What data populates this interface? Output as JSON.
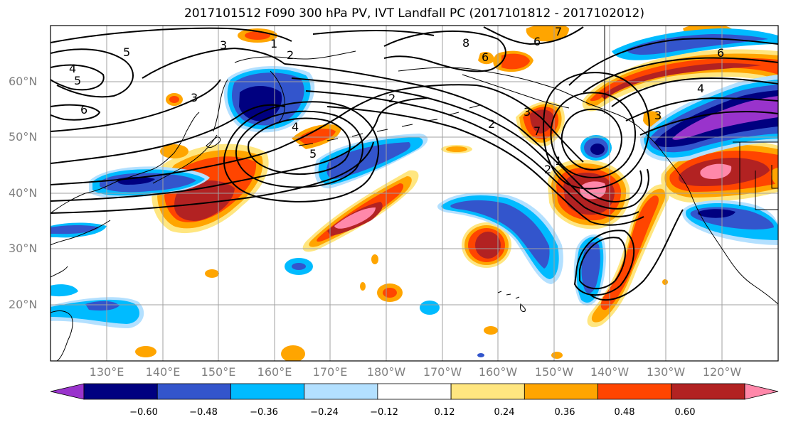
{
  "title": "2017101512 F090 300 hPa PV, IVT Landfall PC (2017101812 - 2017102012)",
  "lat_labels": [
    "60°N",
    "50°N",
    "40°N",
    "30°N",
    "20°N"
  ],
  "lon_labels": [
    "130°E",
    "140°E",
    "150°E",
    "160°E",
    "170°E",
    "180°W",
    "170°W",
    "160°W",
    "150°W",
    "140°W",
    "130°W",
    "120°W"
  ],
  "colorbar": {
    "ticks": [
      "−0.60",
      "−0.48",
      "−0.36",
      "−0.24",
      "−0.12",
      "0.12",
      "0.24",
      "0.36",
      "0.48",
      "0.60"
    ],
    "colors": [
      "#9933cc",
      "#000080",
      "#3355cc",
      "#00bbff",
      "#b3e0ff",
      "#ffffff",
      "#ffe680",
      "#ffa500",
      "#ff4500",
      "#b22222",
      "#ff88aa"
    ]
  },
  "contour_labels": [
    "5",
    "3",
    "1",
    "2",
    "4",
    "5",
    "6",
    "2",
    "3",
    "4",
    "5",
    "6",
    "7",
    "8",
    "6",
    "3",
    "7",
    "6",
    "2",
    "2",
    "1",
    "3",
    "4"
  ]
}
